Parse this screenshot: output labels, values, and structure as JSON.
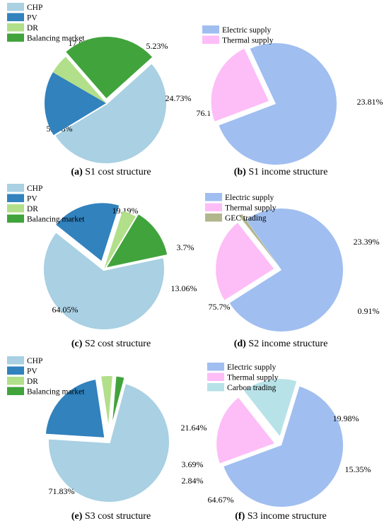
{
  "colors": {
    "CHP": "#a9d0e3",
    "PV": "#3182bd",
    "DR": "#b2df8a",
    "Balancing market": "#41a33c",
    "Electric supply": "#a0bef0",
    "Thermal supply": "#fdbdf7",
    "GEC trading": "#b2b68d",
    "Carbon trading": "#b7e2e8"
  },
  "chart_data": [
    {
      "id": "a",
      "type": "pie",
      "caption_letter": "(a)",
      "caption_text": " S1 cost structure",
      "legend": [
        "CHP",
        "PV",
        "DR",
        "Balancing market"
      ],
      "slices": [
        {
          "name": "CHP",
          "value": 52.98,
          "label": "52.98%"
        },
        {
          "name": "PV",
          "value": 17.06,
          "label": "17.06%"
        },
        {
          "name": "DR",
          "value": 5.23,
          "label": "5.23%"
        },
        {
          "name": "Balancing market",
          "value": 24.73,
          "label": "24.73%"
        }
      ]
    },
    {
      "id": "b",
      "type": "pie",
      "caption_letter": "(b)",
      "caption_text": " S1 income structure",
      "legend": [
        "Electric supply",
        "Thermal supply"
      ],
      "slices": [
        {
          "name": "Electric supply",
          "value": 76.19,
          "label": "76.19%"
        },
        {
          "name": "Thermal supply",
          "value": 23.81,
          "label": "23.81%"
        }
      ]
    },
    {
      "id": "c",
      "type": "pie",
      "caption_letter": "(c)",
      "caption_text": " S2 cost structure",
      "legend": [
        "CHP",
        "PV",
        "DR",
        "Balancing market"
      ],
      "slices": [
        {
          "name": "CHP",
          "value": 64.05,
          "label": "64.05%"
        },
        {
          "name": "PV",
          "value": 19.19,
          "label": "19.19%"
        },
        {
          "name": "DR",
          "value": 3.7,
          "label": "3.7%"
        },
        {
          "name": "Balancing market",
          "value": 13.06,
          "label": "13.06%"
        }
      ]
    },
    {
      "id": "d",
      "type": "pie",
      "caption_letter": "(d)",
      "caption_text": " S2 income structure",
      "legend": [
        "Electric supply",
        "Thermal supply",
        "GEC trading"
      ],
      "slices": [
        {
          "name": "Electric supply",
          "value": 75.7,
          "label": "75.7%"
        },
        {
          "name": "Thermal supply",
          "value": 23.39,
          "label": "23.39%"
        },
        {
          "name": "GEC trading",
          "value": 0.91,
          "label": "0.91%"
        }
      ]
    },
    {
      "id": "e",
      "type": "pie",
      "caption_letter": "(e)",
      "caption_text": " S3 cost structure",
      "legend": [
        "CHP",
        "PV",
        "DR",
        "Balancing market"
      ],
      "slices": [
        {
          "name": "CHP",
          "value": 71.83,
          "label": "71.83%"
        },
        {
          "name": "PV",
          "value": 21.64,
          "label": "21.64%"
        },
        {
          "name": "DR",
          "value": 3.69,
          "label": "3.69%"
        },
        {
          "name": "Balancing market",
          "value": 2.84,
          "label": "2.84%"
        }
      ]
    },
    {
      "id": "f",
      "type": "pie",
      "caption_letter": "(f)",
      "caption_text": " S3 income structure",
      "legend": [
        "Electric supply",
        "Thermal supply",
        "Carbon trading"
      ],
      "slices": [
        {
          "name": "Electric supply",
          "value": 64.67,
          "label": "64.67%"
        },
        {
          "name": "Thermal supply",
          "value": 19.98,
          "label": "19.98%"
        },
        {
          "name": "Carbon trading",
          "value": 15.35,
          "label": "15.35%"
        }
      ]
    }
  ]
}
